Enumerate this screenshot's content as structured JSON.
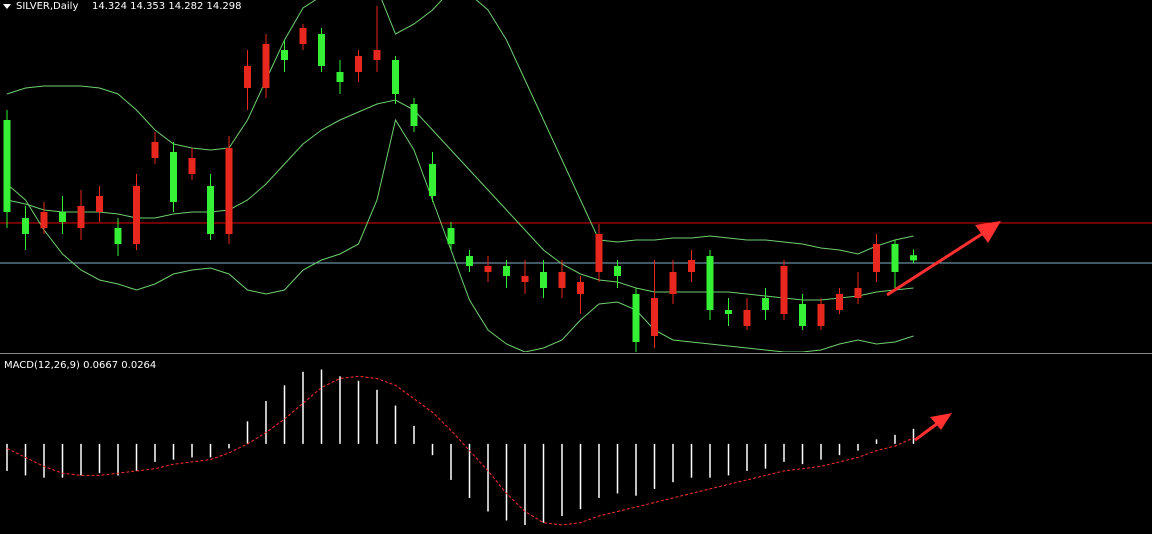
{
  "chart_data": [
    {
      "type": "candlestick",
      "title": "SILVER,Daily",
      "subtitle": "14.324 14.353 14.282 14.298",
      "ylim": [
        13.84,
        15.6
      ],
      "up_color": "#e8281e",
      "down_color": "#35f035",
      "open": [
        15.0,
        14.51,
        14.46,
        14.54,
        14.46,
        14.54,
        14.46,
        14.38,
        14.81,
        14.84,
        14.73,
        14.67,
        14.43,
        15.16,
        15.16,
        15.35,
        15.38,
        15.43,
        15.24,
        15.24,
        15.3,
        15.3,
        15.08,
        14.78,
        14.46,
        14.32,
        14.24,
        14.27,
        14.19,
        14.24,
        14.16,
        14.13,
        14.24,
        14.27,
        14.13,
        13.92,
        14.13,
        14.24,
        14.32,
        14.05,
        13.97,
        14.11,
        14.03,
        14.08,
        13.97,
        14.05,
        14.11,
        14.24,
        14.38,
        14.324
      ],
      "high": [
        15.05,
        14.57,
        14.59,
        14.62,
        14.65,
        14.67,
        14.51,
        14.73,
        14.94,
        14.89,
        14.86,
        14.73,
        14.92,
        15.35,
        15.43,
        15.4,
        15.48,
        15.46,
        15.3,
        15.35,
        15.57,
        15.32,
        15.11,
        14.84,
        14.49,
        14.35,
        14.32,
        14.3,
        14.3,
        14.3,
        14.3,
        14.22,
        14.48,
        14.3,
        14.16,
        14.3,
        14.3,
        14.35,
        14.35,
        14.11,
        14.11,
        14.16,
        14.3,
        14.13,
        14.11,
        14.16,
        14.24,
        14.43,
        14.4,
        14.353
      ],
      "low": [
        14.46,
        14.35,
        14.43,
        14.43,
        14.4,
        14.49,
        14.32,
        14.35,
        14.78,
        14.54,
        14.7,
        14.4,
        14.38,
        15.05,
        15.11,
        15.24,
        15.35,
        15.24,
        15.13,
        15.19,
        15.24,
        15.08,
        14.94,
        14.59,
        14.35,
        14.24,
        14.19,
        14.16,
        14.13,
        14.11,
        14.11,
        14.03,
        14.19,
        14.16,
        13.84,
        13.86,
        14.08,
        14.19,
        14.0,
        13.97,
        13.95,
        14.0,
        14.0,
        13.95,
        13.95,
        14.03,
        14.08,
        14.19,
        14.16,
        14.282
      ],
      "close": [
        14.54,
        14.43,
        14.54,
        14.49,
        14.57,
        14.62,
        14.38,
        14.67,
        14.89,
        14.59,
        14.81,
        14.43,
        14.86,
        15.27,
        15.38,
        15.3,
        15.46,
        15.27,
        15.19,
        15.32,
        15.35,
        15.13,
        14.97,
        14.62,
        14.38,
        14.27,
        14.27,
        14.22,
        14.22,
        14.16,
        14.24,
        14.19,
        14.43,
        14.22,
        13.89,
        14.11,
        14.24,
        14.3,
        14.05,
        14.03,
        14.05,
        14.05,
        14.27,
        13.97,
        14.08,
        14.13,
        14.16,
        14.38,
        14.24,
        14.298
      ],
      "bands": {
        "color": "#6fcf6f",
        "upper": [
          15.13,
          15.16,
          15.17,
          15.17,
          15.17,
          15.16,
          15.13,
          15.05,
          14.95,
          14.88,
          14.86,
          14.85,
          14.86,
          15.0,
          15.2,
          15.4,
          15.56,
          15.62,
          15.66,
          15.68,
          15.66,
          15.43,
          15.48,
          15.55,
          15.65,
          15.63,
          15.55,
          15.4,
          15.2,
          15.0,
          14.8,
          14.6,
          14.4,
          14.39,
          14.4,
          14.4,
          14.41,
          14.41,
          14.42,
          14.41,
          14.4,
          14.4,
          14.39,
          14.38,
          14.36,
          14.35,
          14.33,
          14.37,
          14.4,
          14.42
        ],
        "middle": [
          14.6,
          14.58,
          14.55,
          14.54,
          14.54,
          14.54,
          14.53,
          14.51,
          14.51,
          14.53,
          14.54,
          14.54,
          14.55,
          14.6,
          14.68,
          14.78,
          14.88,
          14.95,
          15.0,
          15.04,
          15.08,
          15.1,
          15.05,
          14.95,
          14.85,
          14.75,
          14.65,
          14.55,
          14.45,
          14.35,
          14.28,
          14.23,
          14.2,
          14.19,
          14.16,
          14.14,
          14.14,
          14.14,
          14.14,
          14.14,
          14.13,
          14.12,
          14.11,
          14.1,
          14.1,
          14.11,
          14.12,
          14.14,
          14.15,
          14.16
        ],
        "lower": [
          14.68,
          14.6,
          14.45,
          14.33,
          14.25,
          14.2,
          14.18,
          14.15,
          14.18,
          14.23,
          14.25,
          14.26,
          14.23,
          14.15,
          14.13,
          14.15,
          14.25,
          14.3,
          14.33,
          14.38,
          14.6,
          15.0,
          14.85,
          14.6,
          14.35,
          14.1,
          13.95,
          13.88,
          13.84,
          13.86,
          13.9,
          14.0,
          14.08,
          14.09,
          14.05,
          13.95,
          13.9,
          13.89,
          13.88,
          13.87,
          13.86,
          13.85,
          13.84,
          13.84,
          13.85,
          13.88,
          13.9,
          13.88,
          13.89,
          13.92
        ]
      },
      "levels": [
        {
          "value": 14.485,
          "color": "#e00000"
        },
        {
          "value": 14.285,
          "color": "#7fb2c8"
        }
      ]
    },
    {
      "type": "macd",
      "title": "MACD(12,26,9) 0.0667 0.0264",
      "ylim": [
        -0.4,
        0.39
      ],
      "histogram_color": "#ffffff",
      "signal_color": "#ff3030",
      "histogram": [
        -0.12,
        -0.14,
        -0.15,
        -0.15,
        -0.14,
        -0.13,
        -0.14,
        -0.12,
        -0.08,
        -0.07,
        -0.06,
        -0.06,
        -0.02,
        0.1,
        0.19,
        0.26,
        0.32,
        0.33,
        0.3,
        0.28,
        0.24,
        0.17,
        0.08,
        -0.05,
        -0.16,
        -0.24,
        -0.3,
        -0.34,
        -0.36,
        -0.35,
        -0.32,
        -0.29,
        -0.24,
        -0.22,
        -0.23,
        -0.2,
        -0.17,
        -0.15,
        -0.15,
        -0.14,
        -0.12,
        -0.11,
        -0.08,
        -0.09,
        -0.07,
        -0.05,
        -0.03,
        0.02,
        0.04,
        0.0667
      ],
      "signal": [
        -0.02,
        -0.06,
        -0.1,
        -0.13,
        -0.14,
        -0.14,
        -0.13,
        -0.12,
        -0.11,
        -0.09,
        -0.08,
        -0.07,
        -0.04,
        0.0,
        0.05,
        0.11,
        0.18,
        0.25,
        0.29,
        0.3,
        0.29,
        0.26,
        0.2,
        0.14,
        0.06,
        -0.03,
        -0.12,
        -0.22,
        -0.3,
        -0.35,
        -0.36,
        -0.35,
        -0.32,
        -0.3,
        -0.28,
        -0.26,
        -0.24,
        -0.22,
        -0.2,
        -0.18,
        -0.16,
        -0.14,
        -0.12,
        -0.11,
        -0.1,
        -0.08,
        -0.06,
        -0.03,
        -0.01,
        0.0264
      ]
    }
  ]
}
